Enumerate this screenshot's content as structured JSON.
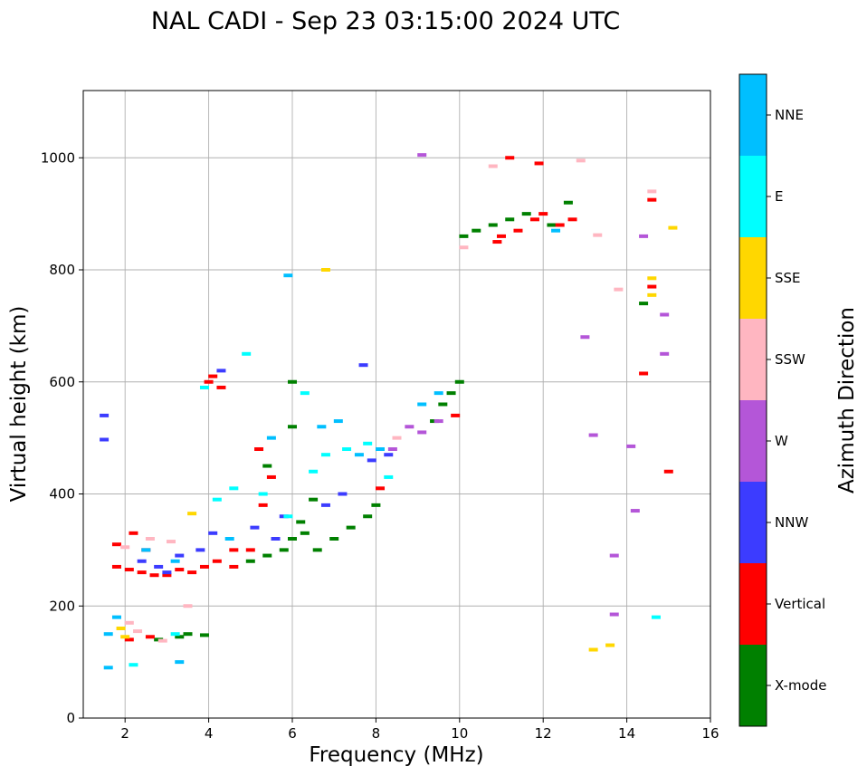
{
  "chart_data": {
    "type": "scatter",
    "title": "NAL CADI - Sep 23 03:15:00 2024 UTC",
    "xlabel": "Frequency (MHz)",
    "ylabel": "Virtual height (km)",
    "xlim": [
      1,
      16
    ],
    "ylim": [
      0,
      1120
    ],
    "xticks": [
      2,
      4,
      6,
      8,
      10,
      12,
      14,
      16
    ],
    "yticks": [
      0,
      200,
      400,
      600,
      800,
      1000
    ],
    "grid": true,
    "colorbar": {
      "label": "Azimuth Direction",
      "categories": [
        {
          "name": "X-mode",
          "color": "#008000"
        },
        {
          "name": "Vertical",
          "color": "#ff0000"
        },
        {
          "name": "NNW",
          "color": "#3c3cff"
        },
        {
          "name": "W",
          "color": "#b456d8"
        },
        {
          "name": "SSW",
          "color": "#ffb6c1"
        },
        {
          "name": "SSE",
          "color": "#ffd700"
        },
        {
          "name": "E",
          "color": "#00ffff"
        },
        {
          "name": "NNE",
          "color": "#00bfff"
        }
      ]
    },
    "series": [
      {
        "name": "X-mode",
        "points": [
          [
            2.8,
            140
          ],
          [
            3.3,
            145
          ],
          [
            3.5,
            150
          ],
          [
            3.9,
            148
          ],
          [
            5.0,
            280
          ],
          [
            5.4,
            290
          ],
          [
            5.8,
            300
          ],
          [
            6.0,
            320
          ],
          [
            6.3,
            330
          ],
          [
            6.6,
            300
          ],
          [
            7.0,
            320
          ],
          [
            7.4,
            340
          ],
          [
            7.8,
            360
          ],
          [
            8.0,
            380
          ],
          [
            6.2,
            350
          ],
          [
            6.5,
            390
          ],
          [
            9.6,
            560
          ],
          [
            9.8,
            580
          ],
          [
            10.0,
            600
          ],
          [
            9.4,
            530
          ],
          [
            10.1,
            860
          ],
          [
            10.4,
            870
          ],
          [
            10.8,
            880
          ],
          [
            11.2,
            890
          ],
          [
            11.6,
            900
          ],
          [
            12.2,
            880
          ],
          [
            12.6,
            920
          ],
          [
            14.4,
            740
          ],
          [
            6.0,
            600
          ],
          [
            5.4,
            450
          ],
          [
            6.0,
            520
          ]
        ]
      },
      {
        "name": "Vertical",
        "points": [
          [
            1.8,
            270
          ],
          [
            2.1,
            265
          ],
          [
            2.4,
            260
          ],
          [
            2.7,
            255
          ],
          [
            3.0,
            255
          ],
          [
            3.3,
            265
          ],
          [
            3.6,
            260
          ],
          [
            3.9,
            270
          ],
          [
            4.2,
            280
          ],
          [
            4.6,
            270
          ],
          [
            5.0,
            300
          ],
          [
            1.8,
            310
          ],
          [
            2.2,
            330
          ],
          [
            2.5,
            300
          ],
          [
            4.0,
            600
          ],
          [
            4.1,
            610
          ],
          [
            4.3,
            590
          ],
          [
            4.6,
            300
          ],
          [
            5.2,
            480
          ],
          [
            5.5,
            430
          ],
          [
            5.3,
            380
          ],
          [
            2.6,
            145
          ],
          [
            2.1,
            140
          ],
          [
            11.0,
            860
          ],
          [
            11.4,
            870
          ],
          [
            11.8,
            890
          ],
          [
            12.0,
            900
          ],
          [
            12.4,
            880
          ],
          [
            12.7,
            890
          ],
          [
            10.9,
            850
          ],
          [
            14.6,
            925
          ],
          [
            14.6,
            770
          ],
          [
            14.4,
            615
          ],
          [
            15.0,
            440
          ],
          [
            9.9,
            540
          ],
          [
            8.1,
            410
          ],
          [
            11.2,
            1000
          ],
          [
            11.9,
            990
          ]
        ]
      },
      {
        "name": "NNW",
        "points": [
          [
            2.4,
            280
          ],
          [
            2.8,
            270
          ],
          [
            3.3,
            290
          ],
          [
            3.8,
            300
          ],
          [
            4.1,
            330
          ],
          [
            5.1,
            340
          ],
          [
            5.8,
            360
          ],
          [
            6.8,
            380
          ],
          [
            7.2,
            400
          ],
          [
            7.9,
            460
          ],
          [
            8.3,
            470
          ],
          [
            3.0,
            260
          ],
          [
            4.3,
            620
          ],
          [
            1.5,
            540
          ],
          [
            1.5,
            497
          ],
          [
            7.7,
            630
          ],
          [
            5.6,
            320
          ]
        ]
      },
      {
        "name": "W",
        "points": [
          [
            8.8,
            520
          ],
          [
            9.1,
            510
          ],
          [
            9.5,
            530
          ],
          [
            13.0,
            680
          ],
          [
            14.9,
            720
          ],
          [
            14.9,
            650
          ],
          [
            13.2,
            505
          ],
          [
            14.1,
            485
          ],
          [
            14.2,
            370
          ],
          [
            13.7,
            290
          ],
          [
            13.7,
            185
          ],
          [
            14.4,
            860
          ],
          [
            9.1,
            1005
          ],
          [
            8.4,
            480
          ]
        ]
      },
      {
        "name": "SSW",
        "points": [
          [
            2.1,
            170
          ],
          [
            2.3,
            155
          ],
          [
            2.9,
            138
          ],
          [
            2.0,
            305
          ],
          [
            2.6,
            320
          ],
          [
            3.1,
            315
          ],
          [
            8.5,
            500
          ],
          [
            10.1,
            840
          ],
          [
            13.3,
            862
          ],
          [
            14.6,
            940
          ],
          [
            12.9,
            995
          ],
          [
            13.8,
            765
          ],
          [
            10.8,
            985
          ],
          [
            3.5,
            200
          ]
        ]
      },
      {
        "name": "SSE",
        "points": [
          [
            2.0,
            145
          ],
          [
            3.6,
            365
          ],
          [
            14.6,
            785
          ],
          [
            14.6,
            755
          ],
          [
            15.1,
            875
          ],
          [
            13.6,
            130
          ],
          [
            13.2,
            122
          ],
          [
            6.8,
            800
          ],
          [
            1.9,
            160
          ]
        ]
      },
      {
        "name": "E",
        "points": [
          [
            3.2,
            150
          ],
          [
            4.2,
            390
          ],
          [
            4.6,
            410
          ],
          [
            5.3,
            400
          ],
          [
            5.9,
            360
          ],
          [
            6.5,
            440
          ],
          [
            6.8,
            470
          ],
          [
            7.3,
            480
          ],
          [
            7.8,
            490
          ],
          [
            6.3,
            580
          ],
          [
            14.7,
            180
          ],
          [
            8.3,
            430
          ],
          [
            3.9,
            590
          ],
          [
            4.9,
            650
          ],
          [
            2.2,
            95
          ]
        ]
      },
      {
        "name": "NNE",
        "points": [
          [
            1.6,
            150
          ],
          [
            1.8,
            180
          ],
          [
            2.5,
            300
          ],
          [
            3.2,
            280
          ],
          [
            4.5,
            320
          ],
          [
            5.5,
            500
          ],
          [
            6.7,
            520
          ],
          [
            7.1,
            530
          ],
          [
            7.6,
            470
          ],
          [
            8.1,
            480
          ],
          [
            9.1,
            560
          ],
          [
            9.5,
            580
          ],
          [
            5.9,
            790
          ],
          [
            12.3,
            870
          ],
          [
            3.3,
            100
          ],
          [
            1.6,
            90
          ]
        ]
      }
    ]
  }
}
